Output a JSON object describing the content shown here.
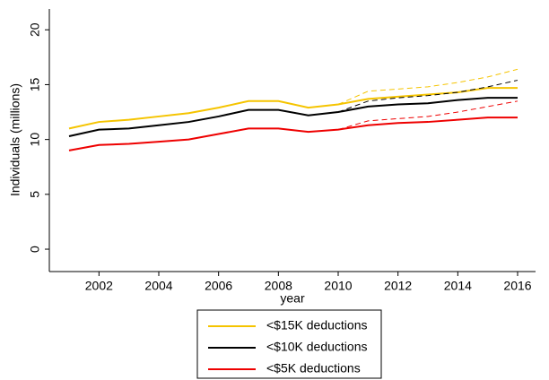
{
  "chart_data": {
    "type": "line",
    "x_label": "year",
    "y_label": "Individuals (millions)",
    "x": [
      2001,
      2002,
      2003,
      2004,
      2005,
      2006,
      2007,
      2008,
      2009,
      2010,
      2011,
      2012,
      2013,
      2014,
      2015,
      2016
    ],
    "xlim": [
      2000.34,
      2016.6
    ],
    "xticks": [
      2002,
      2004,
      2006,
      2008,
      2010,
      2012,
      2014,
      2016
    ],
    "ylim": [
      -2.04,
      21.9
    ],
    "yticks": [
      0,
      5,
      10,
      15,
      20
    ],
    "legend": "bottom",
    "series": [
      {
        "name": "<$15K deductions",
        "color": "#f5c400",
        "values": [
          11.0,
          11.6,
          11.8,
          12.1,
          12.4,
          12.9,
          13.5,
          13.5,
          12.9,
          13.2,
          13.7,
          13.9,
          14.1,
          14.3,
          14.7,
          14.7
        ]
      },
      {
        "name": "<$10K deductions",
        "color": "#000000",
        "values": [
          10.3,
          10.9,
          11.0,
          11.3,
          11.6,
          12.1,
          12.7,
          12.7,
          12.2,
          12.5,
          13.0,
          13.2,
          13.3,
          13.6,
          13.8,
          13.8
        ]
      },
      {
        "name": "<$5K deductions",
        "color": "#ee0000",
        "values": [
          9.0,
          9.5,
          9.6,
          9.8,
          10.0,
          10.5,
          11.0,
          11.0,
          10.7,
          10.9,
          11.3,
          11.5,
          11.6,
          11.8,
          12.0,
          12.0
        ]
      },
      {
        "color": "#f5c400",
        "dash": true,
        "values": [
          null,
          null,
          null,
          null,
          null,
          null,
          null,
          null,
          null,
          13.2,
          14.4,
          14.6,
          14.8,
          15.2,
          15.7,
          16.4
        ]
      },
      {
        "color": "#000000",
        "dash": true,
        "values": [
          null,
          null,
          null,
          null,
          null,
          null,
          null,
          null,
          null,
          12.5,
          13.5,
          13.8,
          14.0,
          14.3,
          14.8,
          15.4
        ]
      },
      {
        "color": "#ee0000",
        "dash": true,
        "values": [
          null,
          null,
          null,
          null,
          null,
          null,
          null,
          null,
          null,
          10.9,
          11.7,
          11.9,
          12.1,
          12.5,
          13.0,
          13.5
        ]
      }
    ]
  }
}
